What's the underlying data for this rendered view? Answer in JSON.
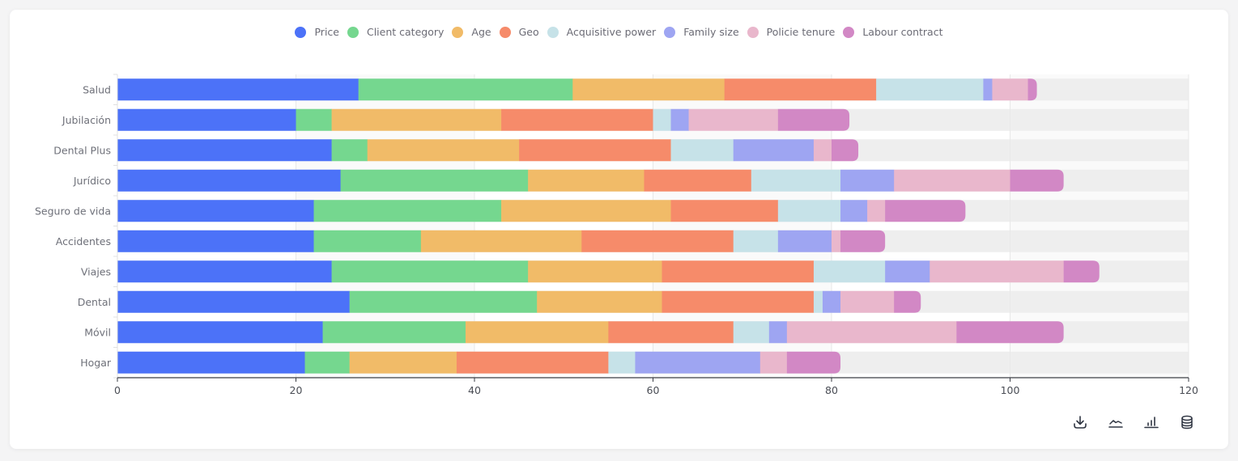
{
  "chart_data": {
    "type": "bar",
    "orientation": "horizontal",
    "stacked": true,
    "title": "",
    "xlabel": "",
    "ylabel": "",
    "xlim": [
      0,
      120
    ],
    "x_ticks": [
      "0",
      "20",
      "40",
      "60",
      "80",
      "100",
      "120"
    ],
    "x_tick_values": [
      0,
      20,
      40,
      60,
      80,
      100,
      120
    ],
    "grid": true,
    "legend_position": "top-center",
    "background_track": true,
    "categories": [
      "Salud",
      "Jubilación",
      "Dental Plus",
      "Jurídico",
      "Seguro de vida",
      "Accidentes",
      "Viajes",
      "Dental",
      "Móvil",
      "Hogar"
    ],
    "series": [
      {
        "name": "Price",
        "color": "#4c72f8",
        "values": [
          27,
          20,
          24,
          25,
          22,
          22,
          24,
          26,
          23,
          21
        ]
      },
      {
        "name": "Client category",
        "color": "#75d78f",
        "values": [
          24,
          4,
          4,
          21,
          21,
          12,
          22,
          21,
          16,
          5
        ]
      },
      {
        "name": "Age",
        "color": "#f1bb68",
        "values": [
          17,
          19,
          17,
          13,
          19,
          18,
          15,
          14,
          16,
          12
        ]
      },
      {
        "name": "Geo",
        "color": "#f68b6a",
        "values": [
          17,
          17,
          17,
          12,
          12,
          17,
          17,
          17,
          14,
          17
        ]
      },
      {
        "name": "Acquisitive power",
        "color": "#c6e2e8",
        "values": [
          12,
          2,
          7,
          10,
          7,
          5,
          8,
          1,
          4,
          3
        ]
      },
      {
        "name": "Family size",
        "color": "#9ea5f2",
        "values": [
          1,
          2,
          9,
          6,
          3,
          6,
          5,
          2,
          2,
          14
        ]
      },
      {
        "name": "Policie tenure",
        "color": "#e9b7cc",
        "values": [
          4,
          10,
          2,
          13,
          2,
          1,
          15,
          6,
          19,
          3
        ]
      },
      {
        "name": "Labour contract",
        "color": "#d288c5",
        "values": [
          1,
          8,
          3,
          6,
          9,
          5,
          4,
          3,
          12,
          6
        ]
      }
    ]
  },
  "legend": [
    {
      "label": "Price",
      "color": "#4c72f8"
    },
    {
      "label": "Client category",
      "color": "#75d78f"
    },
    {
      "label": "Age",
      "color": "#f1bb68"
    },
    {
      "label": "Geo",
      "color": "#f68b6a"
    },
    {
      "label": "Acquisitive power",
      "color": "#c6e2e8"
    },
    {
      "label": "Family size",
      "color": "#9ea5f2"
    },
    {
      "label": "Policie tenure",
      "color": "#e9b7cc"
    },
    {
      "label": "Labour contract",
      "color": "#d288c5"
    }
  ],
  "toolbar": [
    {
      "name": "download-button",
      "icon": "download-icon"
    },
    {
      "name": "line-chart-button",
      "icon": "line-chart-icon"
    },
    {
      "name": "bar-chart-button",
      "icon": "bar-chart-icon"
    },
    {
      "name": "data-view-button",
      "icon": "database-icon"
    }
  ]
}
